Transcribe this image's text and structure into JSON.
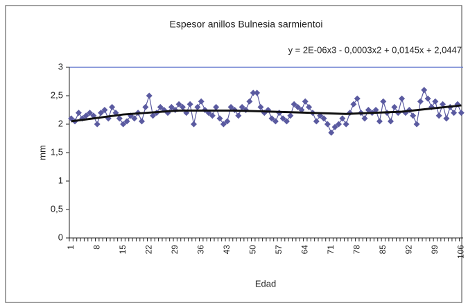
{
  "chart_data": {
    "type": "line",
    "title": "Espesor anillos Bulnesia sarmientoi",
    "xlabel": "Edad",
    "ylabel": "mm",
    "categories": [
      1,
      null,
      null,
      null,
      null,
      null,
      null,
      8,
      null,
      null,
      null,
      null,
      null,
      null,
      15,
      null,
      null,
      null,
      null,
      null,
      null,
      22,
      null,
      null,
      null,
      null,
      null,
      null,
      29,
      null,
      null,
      null,
      null,
      null,
      null,
      36,
      null,
      null,
      null,
      null,
      null,
      null,
      43,
      null,
      null,
      null,
      null,
      null,
      null,
      50,
      null,
      null,
      null,
      null,
      null,
      null,
      57,
      null,
      null,
      null,
      null,
      null,
      null,
      64,
      null,
      null,
      null,
      null,
      null,
      null,
      71,
      null,
      null,
      null,
      null,
      null,
      null,
      78,
      null,
      null,
      null,
      null,
      null,
      null,
      85,
      null,
      null,
      null,
      null,
      null,
      null,
      92,
      null,
      null,
      null,
      null,
      null,
      null,
      99,
      null,
      null,
      null,
      null,
      null,
      null,
      106
    ],
    "series": [
      {
        "color": "#5a5aa0",
        "values": [
          2.1,
          2.05,
          2.2,
          2.1,
          2.15,
          2.2,
          2.15,
          2.0,
          2.2,
          2.25,
          2.1,
          2.3,
          2.2,
          2.1,
          2.0,
          2.05,
          2.15,
          2.1,
          2.2,
          2.05,
          2.3,
          2.5,
          2.15,
          2.2,
          2.3,
          2.25,
          2.2,
          2.3,
          2.25,
          2.35,
          2.3,
          2.2,
          2.35,
          2.0,
          2.3,
          2.4,
          2.25,
          2.2,
          2.15,
          2.3,
          2.1,
          2.0,
          2.05,
          2.3,
          2.25,
          2.15,
          2.3,
          2.25,
          2.4,
          2.55,
          2.55,
          2.3,
          2.2,
          2.25,
          2.1,
          2.05,
          2.2,
          2.1,
          2.05,
          2.15,
          2.35,
          2.3,
          2.25,
          2.4,
          2.3,
          2.2,
          2.05,
          2.15,
          2.1,
          2.0,
          1.85,
          1.95,
          2.0,
          2.1,
          2.0,
          2.2,
          2.35,
          2.45,
          2.2,
          2.1,
          2.25,
          2.2,
          2.25,
          2.05,
          2.4,
          2.2,
          2.05,
          2.3,
          2.2,
          2.45,
          2.2,
          2.25,
          2.15,
          2.0,
          2.4,
          2.6,
          2.45,
          2.3,
          2.4,
          2.15,
          2.35,
          2.1,
          2.3,
          2.2,
          2.35,
          2.2
        ]
      }
    ],
    "trendline": {
      "label": "y = 2E-06x3 - 0,0003x2 + 0,0145x + 2,0447",
      "color": "#111111",
      "x": [
        1,
        15,
        30,
        45,
        60,
        75,
        90,
        106
      ],
      "values": [
        2.05,
        2.17,
        2.24,
        2.24,
        2.21,
        2.18,
        2.22,
        2.33
      ]
    },
    "ylim": [
      0,
      3
    ],
    "yticks": [
      0,
      {
        "value": 0.5,
        "label": "0,5"
      },
      1,
      {
        "value": 1.5,
        "label": "1,5"
      },
      2,
      {
        "value": 2.5,
        "label": "2,5"
      },
      3
    ]
  }
}
